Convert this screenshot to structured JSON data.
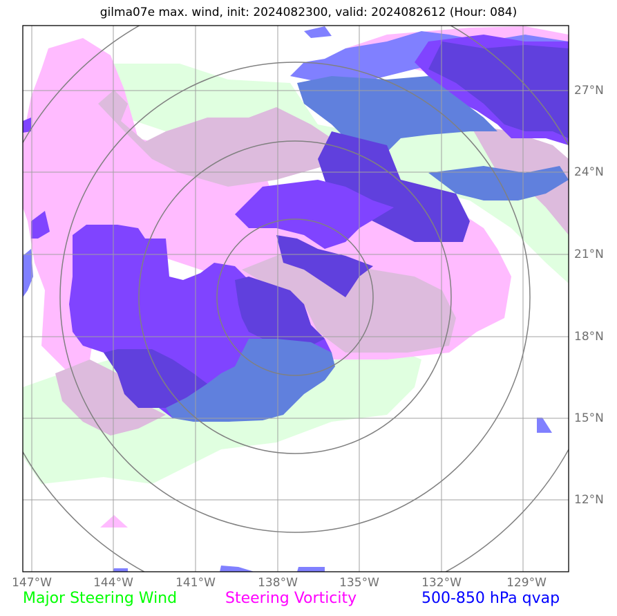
{
  "title": "gilma07e max. wind, init: 2024082300, valid: 2024082612 (Hour: 084)",
  "lon_labels": [
    "147°W",
    "144°W",
    "141°W",
    "138°W",
    "135°W",
    "132°W",
    "129°W"
  ],
  "lat_labels": [
    "27°N",
    "24°N",
    "21°N",
    "18°N",
    "15°N",
    "12°N"
  ],
  "legend": [
    {
      "label": "Major Steering Wind",
      "color": "#00ff00"
    },
    {
      "label": "Steering Vorticity",
      "color": "#ff00ff"
    },
    {
      "label": "500-850 hPa qvap",
      "color": "#0000ff"
    }
  ],
  "colors": {
    "steering_wind": "#e0ffe0",
    "vorticity": "#ffbbff",
    "overlap_wind_vorticity": "#ddbbdd",
    "qvap": "#8080ff",
    "qvap_vorticity": "#8044ff",
    "qvap_wind": "#6080dd",
    "qvap_strong": "#6040dd",
    "grid": "#a0a0a0",
    "range_rings": "#808080"
  }
}
